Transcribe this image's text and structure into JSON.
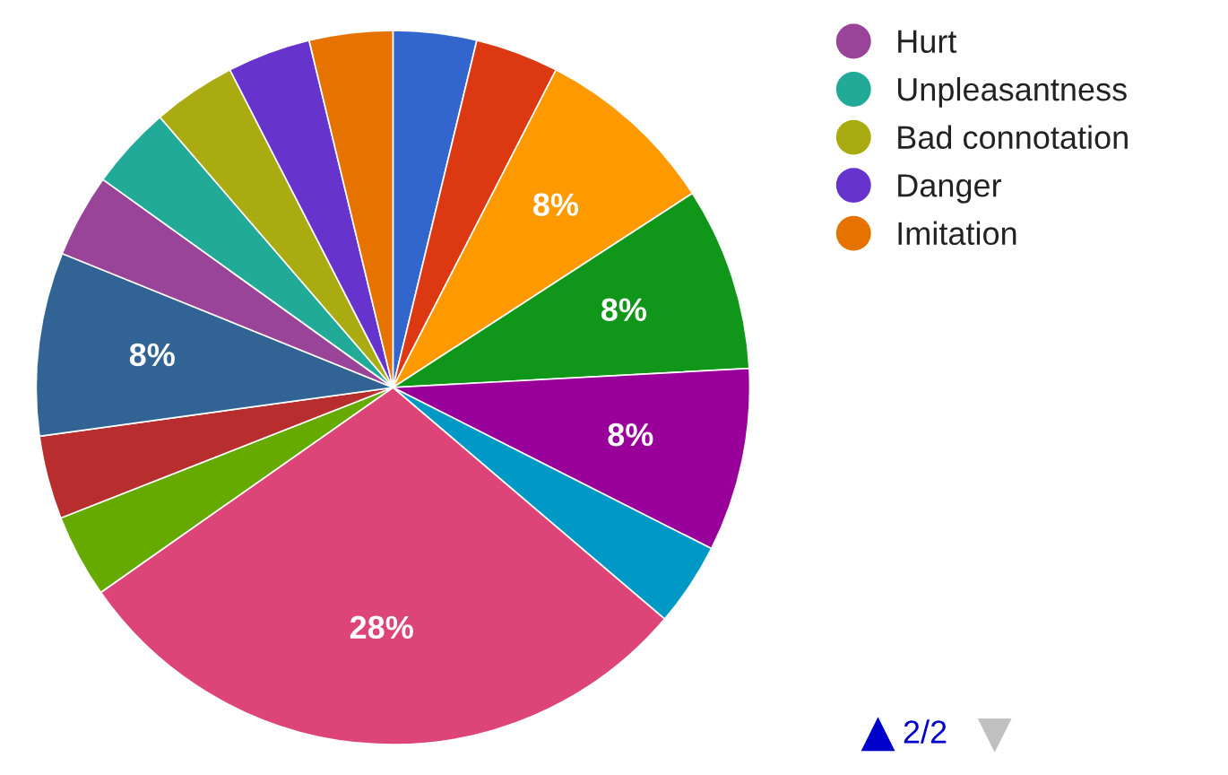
{
  "chart_data": {
    "type": "pie",
    "categories": [
      null,
      null,
      null,
      null,
      null,
      null,
      null,
      null,
      null,
      null,
      "Hurt",
      "Unpleasantness",
      "Bad connotation",
      "Danger",
      "Imitation"
    ],
    "values": [
      3.64,
      3.64,
      8,
      8,
      8,
      3.64,
      28,
      3.64,
      3.64,
      8,
      3.64,
      3.64,
      3.64,
      3.64,
      3.64
    ],
    "colors": [
      "#3366cc",
      "#dc3912",
      "#ff9900",
      "#109618",
      "#990099",
      "#0099c6",
      "#dd4477",
      "#66aa00",
      "#b82e2e",
      "#316395",
      "#994499",
      "#22aa99",
      "#aaaa11",
      "#6633cc",
      "#e67300"
    ],
    "value_labels": [
      null,
      null,
      "8%",
      "8%",
      "8%",
      null,
      "28%",
      null,
      null,
      "8%",
      null,
      null,
      null,
      null,
      null
    ],
    "legend": "right",
    "annotations": [
      "2/2"
    ]
  }
}
